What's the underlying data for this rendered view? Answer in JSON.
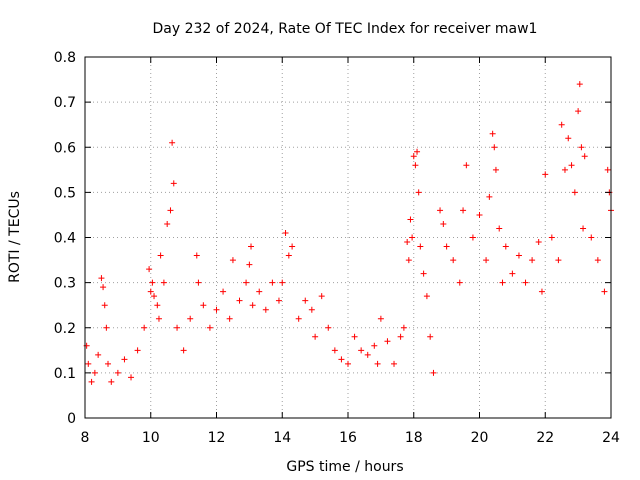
{
  "chart_data": {
    "type": "scatter",
    "title": "Day 232 of 2024, Rate Of TEC Index for receiver maw1",
    "xlabel": "GPS time / hours",
    "ylabel": "ROTI / TECUs",
    "xlim": [
      8,
      24
    ],
    "ylim": [
      0,
      0.8
    ],
    "x_ticks": [
      8,
      10,
      12,
      14,
      16,
      18,
      20,
      22,
      24
    ],
    "y_ticks": [
      0,
      0.1,
      0.2,
      0.3,
      0.4,
      0.5,
      0.6,
      0.7,
      0.8
    ],
    "x_tick_labels": [
      "8",
      "10",
      "12",
      "14",
      "16",
      "18",
      "20",
      "22",
      "24"
    ],
    "y_tick_labels": [
      "0",
      "0.1",
      "0.2",
      "0.3",
      "0.4",
      "0.5",
      "0.6",
      "0.7",
      "0.8"
    ],
    "grid": true,
    "marker": "plus",
    "color": "#ff0000",
    "series": [
      {
        "x": [
          8.05,
          8.1,
          8.2,
          8.3,
          8.4,
          8.5,
          8.55,
          8.6,
          8.65,
          8.7,
          8.8,
          9.0,
          9.2,
          9.4,
          9.6,
          9.8,
          9.95,
          10.0,
          10.05,
          10.1,
          10.2,
          10.25,
          10.3,
          10.4,
          10.5,
          10.6,
          10.65,
          10.7,
          10.8,
          11.0,
          11.2,
          11.4,
          11.45,
          11.6,
          11.8,
          12.0,
          12.2,
          12.4,
          12.5,
          12.7,
          12.9,
          13.0,
          13.05,
          13.1,
          13.3,
          13.5,
          13.7,
          13.9,
          14.0,
          14.1,
          14.2,
          14.3,
          14.5,
          14.7,
          14.9,
          15.0,
          15.2,
          15.4,
          15.6,
          15.8,
          16.0,
          16.2,
          16.4,
          16.6,
          16.8,
          16.9,
          17.0,
          17.2,
          17.4,
          17.6,
          17.7,
          17.8,
          17.85,
          17.9,
          17.95,
          18.0,
          18.05,
          18.1,
          18.15,
          18.2,
          18.3,
          18.4,
          18.5,
          18.6,
          18.8,
          18.9,
          19.0,
          19.2,
          19.4,
          19.5,
          19.6,
          19.8,
          20.0,
          20.2,
          20.3,
          20.4,
          20.45,
          20.5,
          20.6,
          20.7,
          20.8,
          21.0,
          21.2,
          21.4,
          21.6,
          21.8,
          21.9,
          22.0,
          22.2,
          22.4,
          22.5,
          22.6,
          22.7,
          22.8,
          22.9,
          23.0,
          23.05,
          23.1,
          23.15,
          23.2,
          23.4,
          23.6,
          23.8,
          23.9,
          23.95,
          24.0
        ],
        "y": [
          0.16,
          0.12,
          0.08,
          0.1,
          0.14,
          0.31,
          0.29,
          0.25,
          0.2,
          0.12,
          0.08,
          0.1,
          0.13,
          0.09,
          0.15,
          0.2,
          0.33,
          0.28,
          0.3,
          0.27,
          0.25,
          0.22,
          0.36,
          0.3,
          0.43,
          0.46,
          0.61,
          0.52,
          0.2,
          0.15,
          0.22,
          0.36,
          0.3,
          0.25,
          0.2,
          0.24,
          0.28,
          0.22,
          0.35,
          0.26,
          0.3,
          0.34,
          0.38,
          0.25,
          0.28,
          0.24,
          0.3,
          0.26,
          0.3,
          0.41,
          0.36,
          0.38,
          0.22,
          0.26,
          0.24,
          0.18,
          0.27,
          0.2,
          0.15,
          0.13,
          0.12,
          0.18,
          0.15,
          0.14,
          0.16,
          0.12,
          0.22,
          0.17,
          0.12,
          0.18,
          0.2,
          0.39,
          0.35,
          0.44,
          0.4,
          0.58,
          0.56,
          0.59,
          0.5,
          0.38,
          0.32,
          0.27,
          0.18,
          0.1,
          0.46,
          0.43,
          0.38,
          0.35,
          0.3,
          0.46,
          0.56,
          0.4,
          0.45,
          0.35,
          0.49,
          0.63,
          0.6,
          0.55,
          0.42,
          0.3,
          0.38,
          0.32,
          0.36,
          0.3,
          0.35,
          0.39,
          0.28,
          0.54,
          0.4,
          0.35,
          0.65,
          0.55,
          0.62,
          0.56,
          0.5,
          0.68,
          0.74,
          0.6,
          0.42,
          0.58,
          0.4,
          0.35,
          0.28,
          0.55,
          0.5,
          0.46
        ]
      }
    ]
  }
}
